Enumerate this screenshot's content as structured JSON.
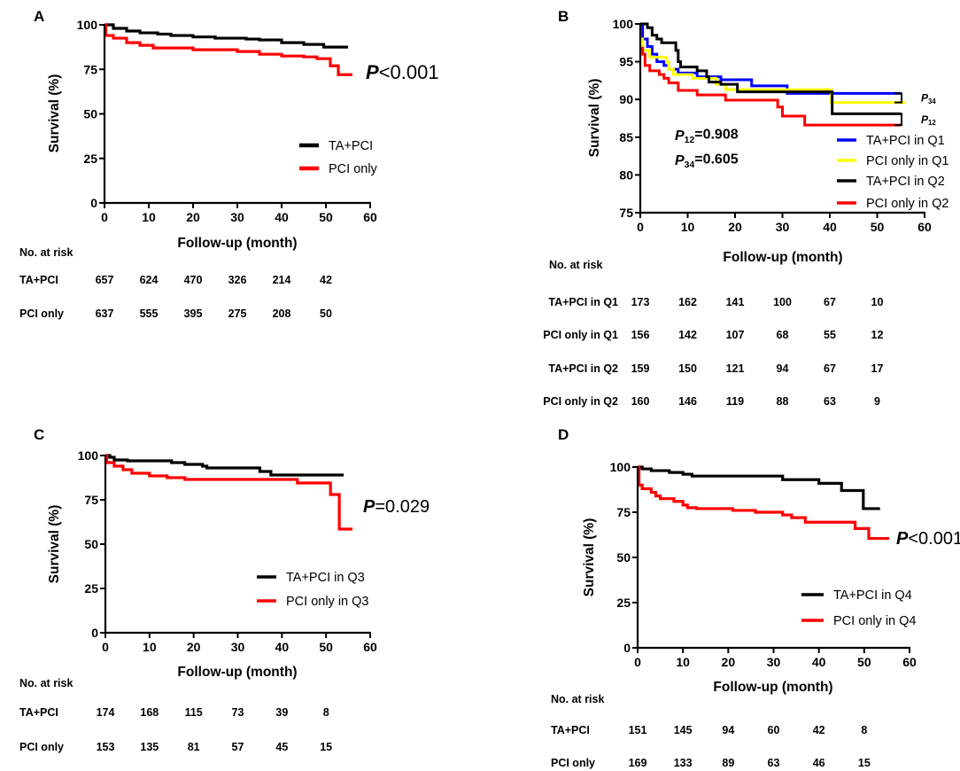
{
  "chart_data": [
    {
      "panel": "A",
      "type": "line",
      "step": true,
      "xlabel": "Follow-up (month)",
      "ylabel": "Survival (%)",
      "xlim": [
        0,
        60
      ],
      "ylim": [
        0,
        100
      ],
      "xticks": [
        0,
        10,
        20,
        30,
        40,
        50,
        60
      ],
      "yticks": [
        0,
        25,
        50,
        75,
        100
      ],
      "grid": false,
      "legend_position": "right",
      "pvalues": [
        {
          "symbol": "P",
          "sub": "",
          "text": "<0.001"
        }
      ],
      "series": [
        {
          "name": "TA+PCI",
          "color": "#000000",
          "points": [
            [
              0,
              100
            ],
            [
              2,
              98
            ],
            [
              5,
              96.5
            ],
            [
              8,
              95.5
            ],
            [
              12,
              94.8
            ],
            [
              15,
              94
            ],
            [
              20,
              93.2
            ],
            [
              25,
              92.5
            ],
            [
              32,
              92
            ],
            [
              35,
              91.5
            ],
            [
              40,
              90
            ],
            [
              45,
              89
            ],
            [
              49.5,
              87.5
            ],
            [
              55,
              87.5
            ]
          ]
        },
        {
          "name": "PCI only",
          "color": "#ff0000",
          "points": [
            [
              0,
              100
            ],
            [
              0.3,
              94
            ],
            [
              2,
              92.5
            ],
            [
              5,
              90
            ],
            [
              8,
              88.5
            ],
            [
              11,
              87
            ],
            [
              20,
              86
            ],
            [
              30,
              85
            ],
            [
              35,
              83.5
            ],
            [
              40,
              82.5
            ],
            [
              45,
              82
            ],
            [
              48,
              81
            ],
            [
              51,
              77
            ],
            [
              52.8,
              72
            ],
            [
              56,
              72
            ]
          ]
        }
      ],
      "risk_table": {
        "title": "No. at risk",
        "times": [
          0,
          10,
          20,
          30,
          40,
          50
        ],
        "rows": [
          {
            "label": "TA+PCI",
            "values": [
              "657",
              "624",
              "470",
              "326",
              "214",
              "42"
            ]
          },
          {
            "label": "PCI only",
            "values": [
              "637",
              "555",
              "395",
              "275",
              "208",
              "50"
            ]
          }
        ]
      }
    },
    {
      "panel": "B",
      "type": "line",
      "step": true,
      "xlabel": "Follow-up (month)",
      "ylabel": "Survival (%)",
      "xlim": [
        0,
        60
      ],
      "ylim": [
        75,
        100
      ],
      "xticks": [
        0,
        10,
        20,
        30,
        40,
        50,
        60
      ],
      "yticks": [
        75,
        80,
        85,
        90,
        95,
        100
      ],
      "grid": false,
      "legend_position": "right",
      "pvalues": [
        {
          "symbol": "P",
          "sub": "12",
          "text": "=0.908"
        },
        {
          "symbol": "P",
          "sub": "34",
          "text": "=0.605"
        }
      ],
      "brackets": [
        {
          "symbol": "P",
          "sub": "34"
        },
        {
          "symbol": "P",
          "sub": "12"
        }
      ],
      "series": [
        {
          "name": "TA+PCI in Q1",
          "color": "#0000ff",
          "points": [
            [
              0,
              100
            ],
            [
              0.5,
              98
            ],
            [
              1.5,
              97
            ],
            [
              2.5,
              96
            ],
            [
              3.5,
              95
            ],
            [
              5,
              94.5
            ],
            [
              6,
              94
            ],
            [
              8,
              93.5
            ],
            [
              12,
              93
            ],
            [
              17,
              92.6
            ],
            [
              23.5,
              91.8
            ],
            [
              31,
              90.8
            ],
            [
              55,
              90.8
            ]
          ]
        },
        {
          "name": "PCI only in Q1",
          "color": "#ffff00",
          "points": [
            [
              0,
              98
            ],
            [
              0.5,
              96.5
            ],
            [
              2,
              95.6
            ],
            [
              5.5,
              95
            ],
            [
              6,
              94
            ],
            [
              7,
              93.3
            ],
            [
              11,
              92.8
            ],
            [
              16,
              92
            ],
            [
              18,
              91.3
            ],
            [
              40.3,
              89.6
            ],
            [
              56,
              89.6
            ]
          ]
        },
        {
          "name": "TA+PCI in Q2",
          "color": "#000000",
          "points": [
            [
              0,
              100
            ],
            [
              1.5,
              99.5
            ],
            [
              2.5,
              98.5
            ],
            [
              3.5,
              98
            ],
            [
              4.5,
              97.5
            ],
            [
              7.5,
              96.5
            ],
            [
              8,
              95
            ],
            [
              8.5,
              94.3
            ],
            [
              12,
              93.8
            ],
            [
              14,
              93
            ],
            [
              14.5,
              92.3
            ],
            [
              17,
              92
            ],
            [
              20.5,
              91
            ],
            [
              40.5,
              88.1
            ],
            [
              55,
              88.1
            ]
          ]
        },
        {
          "name": "PCI only in Q2",
          "color": "#ff0000",
          "points": [
            [
              0,
              96.8
            ],
            [
              0.5,
              96
            ],
            [
              1,
              94.5
            ],
            [
              2,
              93.8
            ],
            [
              4,
              93.3
            ],
            [
              5,
              92.8
            ],
            [
              6,
              92.2
            ],
            [
              8,
              91.2
            ],
            [
              12,
              90.6
            ],
            [
              18,
              89.9
            ],
            [
              29,
              89
            ],
            [
              30,
              87.8
            ],
            [
              34.7,
              86.6
            ],
            [
              55,
              86.6
            ]
          ]
        }
      ],
      "risk_table": {
        "title": "No. at risk",
        "times": [
          0,
          10,
          20,
          30,
          40,
          50
        ],
        "rows": [
          {
            "label": "TA+PCI in Q1",
            "values": [
              "173",
              "162",
              "141",
              "100",
              "67",
              "10"
            ]
          },
          {
            "label": "PCI only in Q1",
            "values": [
              "156",
              "142",
              "107",
              "68",
              "55",
              "12"
            ]
          },
          {
            "label": "TA+PCI in Q2",
            "values": [
              "159",
              "150",
              "121",
              "94",
              "67",
              "17"
            ]
          },
          {
            "label": "PCI only in Q2",
            "values": [
              "160",
              "146",
              "119",
              "88",
              "63",
              "9"
            ]
          }
        ]
      }
    },
    {
      "panel": "C",
      "type": "line",
      "step": true,
      "xlabel": "Follow-up (month)",
      "ylabel": "Survival (%)",
      "xlim": [
        0,
        60
      ],
      "ylim": [
        0,
        100
      ],
      "xticks": [
        0,
        10,
        20,
        30,
        40,
        50,
        60
      ],
      "yticks": [
        0,
        25,
        50,
        75,
        100
      ],
      "grid": false,
      "legend_position": "right",
      "pvalues": [
        {
          "symbol": "P",
          "sub": "",
          "text": "=0.029"
        }
      ],
      "series": [
        {
          "name": "TA+PCI in Q3",
          "color": "#000000",
          "points": [
            [
              0,
              100
            ],
            [
              1,
              99
            ],
            [
              2,
              97.5
            ],
            [
              5,
              97
            ],
            [
              15,
              96
            ],
            [
              18,
              95
            ],
            [
              22,
              94
            ],
            [
              23,
              93
            ],
            [
              35,
              91
            ],
            [
              37.5,
              89
            ],
            [
              54,
              89
            ]
          ]
        },
        {
          "name": "PCI only in Q3",
          "color": "#ff0000",
          "points": [
            [
              0,
              100
            ],
            [
              0.3,
              96
            ],
            [
              2,
              94
            ],
            [
              4,
              92
            ],
            [
              6,
              90
            ],
            [
              10,
              88.5
            ],
            [
              14,
              87.5
            ],
            [
              18,
              86.5
            ],
            [
              43.5,
              84.5
            ],
            [
              51,
              78
            ],
            [
              53,
              58.5
            ],
            [
              56,
              58.5
            ]
          ]
        }
      ],
      "risk_table": {
        "title": "No. at risk",
        "times": [
          0,
          10,
          20,
          30,
          40,
          50
        ],
        "rows": [
          {
            "label": "TA+PCI",
            "values": [
              "174",
              "168",
              "115",
              "73",
              "39",
              "8"
            ]
          },
          {
            "label": "PCI only",
            "values": [
              "153",
              "135",
              "81",
              "57",
              "45",
              "15"
            ]
          }
        ]
      }
    },
    {
      "panel": "D",
      "type": "line",
      "step": true,
      "xlabel": "Follow-up (month)",
      "ylabel": "Survival (%)",
      "xlim": [
        0,
        60
      ],
      "ylim": [
        0,
        100
      ],
      "xticks": [
        0,
        10,
        20,
        30,
        40,
        50,
        60
      ],
      "yticks": [
        0,
        25,
        50,
        75,
        100
      ],
      "grid": false,
      "legend_position": "right",
      "pvalues": [
        {
          "symbol": "P",
          "sub": "",
          "text": "<0.001"
        }
      ],
      "series": [
        {
          "name": "TA+PCI in Q4",
          "color": "#000000",
          "points": [
            [
              0,
              100
            ],
            [
              1,
              99
            ],
            [
              3,
              98
            ],
            [
              7,
              97
            ],
            [
              10,
              96
            ],
            [
              12,
              95
            ],
            [
              32,
              93
            ],
            [
              40,
              91
            ],
            [
              45,
              87
            ],
            [
              49.8,
              77
            ],
            [
              53.5,
              77
            ]
          ]
        },
        {
          "name": "PCI only in Q4",
          "color": "#ff0000",
          "points": [
            [
              0,
              100
            ],
            [
              0.3,
              90
            ],
            [
              1,
              88
            ],
            [
              3,
              86
            ],
            [
              4,
              84
            ],
            [
              5,
              82.5
            ],
            [
              8,
              81
            ],
            [
              10,
              79
            ],
            [
              11,
              77.5
            ],
            [
              13,
              77
            ],
            [
              21,
              76
            ],
            [
              26,
              75
            ],
            [
              32,
              73.5
            ],
            [
              34,
              72
            ],
            [
              37,
              69.5
            ],
            [
              48,
              66
            ],
            [
              51,
              60.5
            ],
            [
              55.5,
              60.5
            ]
          ]
        }
      ],
      "risk_table": {
        "title": "No. at risk",
        "times": [
          0,
          10,
          20,
          30,
          40,
          50
        ],
        "rows": [
          {
            "label": "TA+PCI",
            "values": [
              "151",
              "145",
              "94",
              "60",
              "42",
              "8"
            ]
          },
          {
            "label": "PCI only",
            "values": [
              "169",
              "133",
              "89",
              "63",
              "46",
              "15"
            ]
          }
        ]
      }
    }
  ]
}
